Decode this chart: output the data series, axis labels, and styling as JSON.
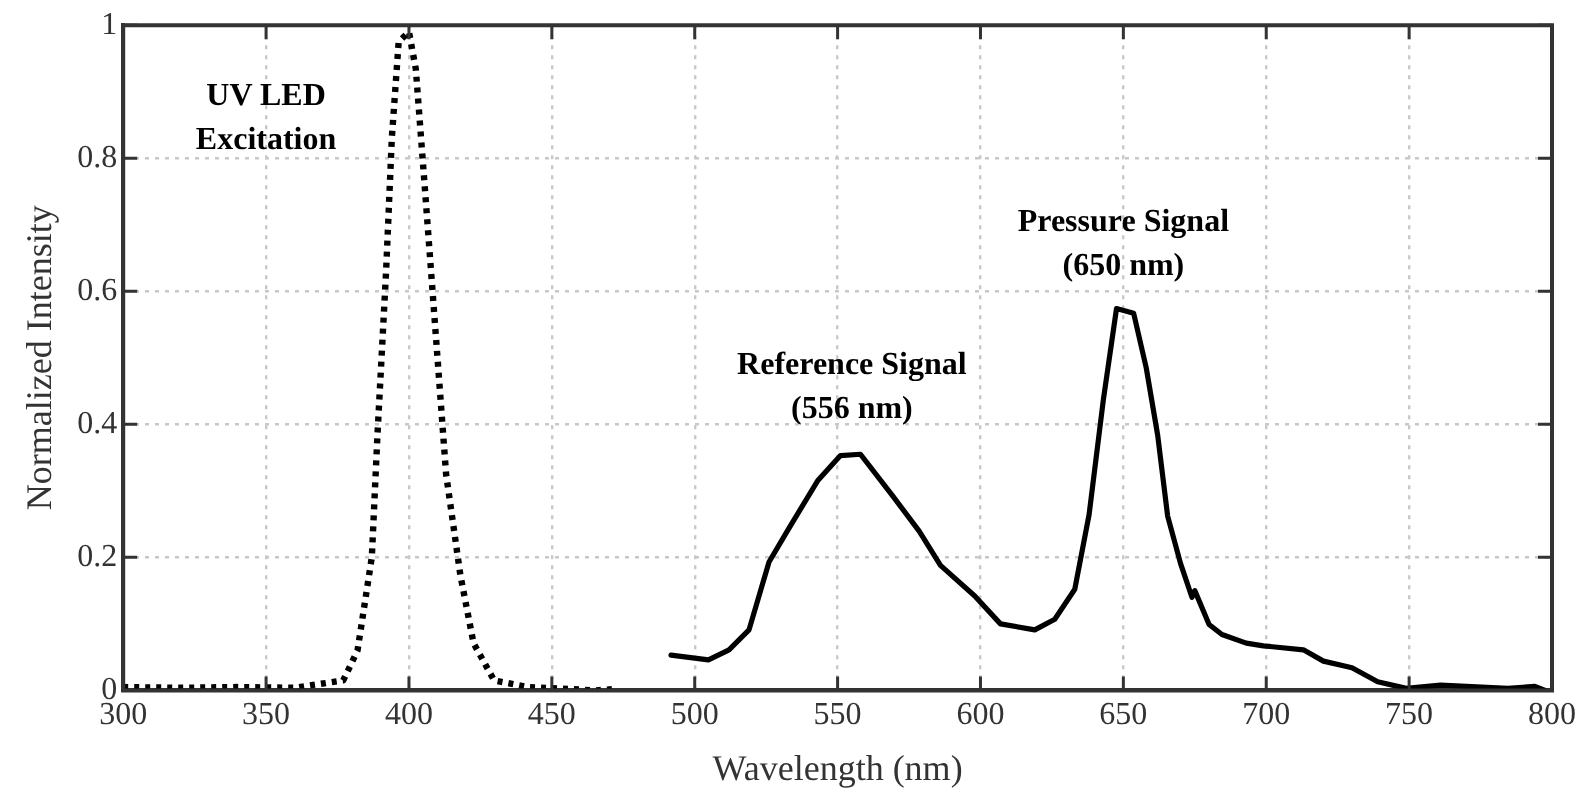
{
  "chart_data": {
    "type": "line",
    "xlabel": "Wavelength (nm)",
    "ylabel": "Normalized Intensity",
    "xlim": [
      300,
      800
    ],
    "xticks": [
      300,
      350,
      400,
      450,
      500,
      550,
      600,
      650,
      700,
      750,
      800
    ],
    "ylim": [
      0,
      1
    ],
    "yticks": [
      0,
      0.2,
      0.4,
      0.6,
      0.8,
      1
    ],
    "grid": true,
    "marker": "none",
    "series": [
      {
        "color": "#000000",
        "line_style": "dotted",
        "x": [
          300,
          320,
          340,
          360,
          377,
          382,
          387,
          389,
          392,
          394,
          396.4,
          400,
          402.4,
          406,
          409.5,
          413,
          418,
          422.6,
          429.8,
          441.7,
          465.5,
          472
        ],
        "values": [
          0.005,
          0.004,
          0.005,
          0.004,
          0.015,
          0.06,
          0.2,
          0.386,
          0.63,
          0.83,
          0.975,
          0.99,
          0.934,
          0.73,
          0.528,
          0.325,
          0.173,
          0.071,
          0.015,
          0.005,
          0,
          0.002
        ]
      },
      {
        "color": "#000000",
        "line_style": "solid",
        "x": [
          491.7,
          504.8,
          512,
          519,
          526,
          533,
          543,
          551,
          558,
          569,
          578.6,
          586,
          598,
          607,
          619,
          626,
          633,
          638,
          643,
          647.6,
          653.6,
          658,
          662,
          665.5,
          670,
          674,
          675,
          680,
          684.5,
          693,
          699,
          713,
          720,
          730,
          739,
          749,
          761,
          770,
          784.5,
          794,
          797.6
        ],
        "values": [
          0.053,
          0.046,
          0.061,
          0.091,
          0.193,
          0.244,
          0.315,
          0.353,
          0.355,
          0.294,
          0.239,
          0.188,
          0.142,
          0.1,
          0.091,
          0.107,
          0.152,
          0.264,
          0.437,
          0.574,
          0.567,
          0.485,
          0.384,
          0.262,
          0.191,
          0.14,
          0.15,
          0.099,
          0.084,
          0.071,
          0.067,
          0.061,
          0.044,
          0.034,
          0.013,
          0.003,
          0.008,
          0.006,
          0.003,
          0.006,
          0
        ]
      }
    ],
    "annotations": [
      "UV LED\nExcitation",
      "Reference Signal\n(556 nm)",
      "Pressure Signal\n(650 nm)"
    ]
  }
}
